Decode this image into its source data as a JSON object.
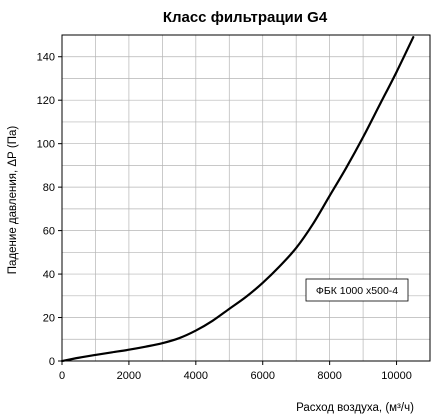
{
  "chart_data": {
    "type": "line",
    "title": "Класс фильтрации G4",
    "xlabel": "Расход воздуха, (м³/ч)",
    "ylabel": "Падение давления, ΔР (Па)",
    "xlim": [
      0,
      11000
    ],
    "ylim": [
      0,
      150
    ],
    "xticks": [
      0,
      2000,
      4000,
      6000,
      8000,
      10000
    ],
    "yticks": [
      0,
      20,
      40,
      60,
      80,
      100,
      120,
      140
    ],
    "x_minor_step": 1000,
    "y_minor_step": 10,
    "grid": true,
    "legend_position": "right",
    "series": [
      {
        "name": "ФБК 1000 x500-4",
        "x": [
          0,
          500,
          1000,
          1500,
          2000,
          2500,
          3000,
          3500,
          4000,
          4500,
          5000,
          5500,
          6000,
          6500,
          7000,
          7500,
          8000,
          8500,
          9000,
          9500,
          10000,
          10500
        ],
        "y": [
          0,
          1.5,
          2.8,
          4,
          5.2,
          6.6,
          8.2,
          10.5,
          14,
          18.5,
          24,
          29.5,
          36,
          43.5,
          52,
          63,
          76,
          89,
          103,
          118,
          133,
          149
        ]
      }
    ]
  },
  "colors": {
    "line": "#000000",
    "grid": "#b5b5b5",
    "axis": "#000000",
    "background": "#ffffff"
  }
}
